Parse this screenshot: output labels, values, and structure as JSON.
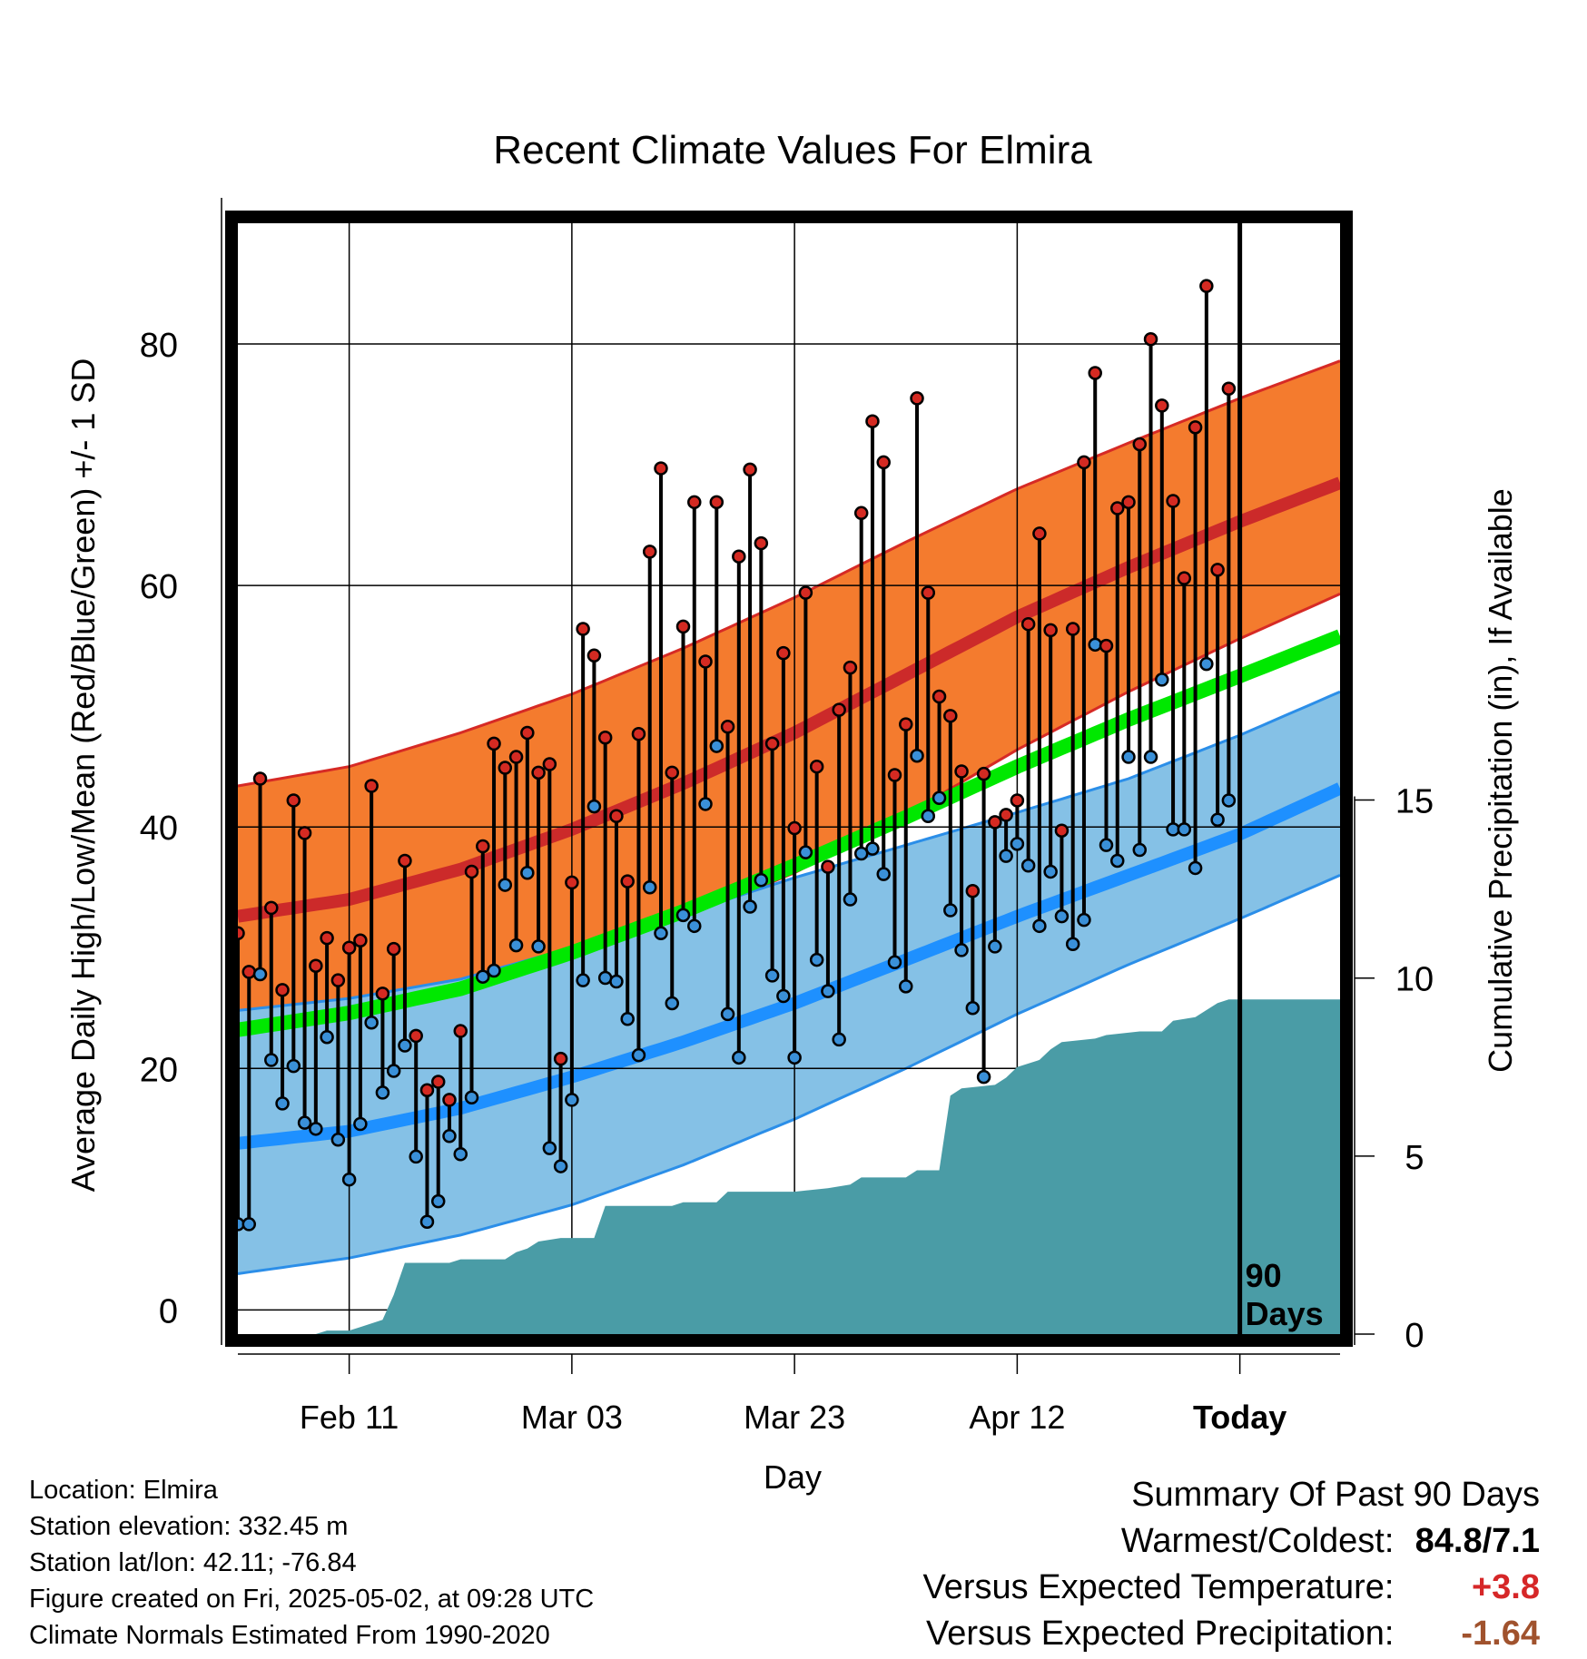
{
  "info": {
    "location": "Location: Elmira",
    "elevation": "Station elevation: 332.45 m",
    "latlon": "Station lat/lon: 42.11; -76.84",
    "created": "Figure created on Fri, 2025-05-02, at 09:28 UTC",
    "normals": "Climate Normals Estimated From 1990-2020"
  },
  "summary": {
    "heading": "Summary Of Past 90 Days",
    "warmest_label": "Warmest/Coldest:",
    "warmest_value": "84.8/7.1",
    "temp_label": "Versus Expected Temperature:",
    "temp_value": "+3.8",
    "precip_label": "Versus Expected Precipitation:",
    "precip_value": "-1.64",
    "temp_color": "#d62728",
    "precip_color": "#a0522d"
  },
  "chart_data": {
    "type": "line",
    "title": "Recent Climate Values For Elmira",
    "xlabel": "Day",
    "ylabel": "Average Daily High/Low/Mean (Red/Blue/Green) +/- 1 SD",
    "y2label": "Cumulative Precipitation (in), If Available",
    "x_range_days": [
      -90,
      9
    ],
    "ylim": [
      -2,
      90
    ],
    "y2lim": [
      0,
      31.2
    ],
    "y_ticks": [
      0,
      20,
      40,
      60,
      80
    ],
    "y2_ticks": [
      0,
      5,
      10,
      15
    ],
    "x_ticks": [
      {
        "day": -80,
        "label": "Feb 11"
      },
      {
        "day": -60,
        "label": "Mar 03"
      },
      {
        "day": -40,
        "label": "Mar 23"
      },
      {
        "day": -20,
        "label": "Apr 12"
      },
      {
        "day": 0,
        "label": "Today"
      }
    ],
    "today_marker": {
      "day": 0,
      "label_line1": "90",
      "label_line2": "Days"
    },
    "colors": {
      "high_band": "#f47b2e",
      "high_band_edge": "#d62a25",
      "high_mean": "#cc2a2a",
      "low_band": "#85c1e6",
      "low_band_edge": "#2b8ee8",
      "low_mean": "#1e90ff",
      "mean_normal": "#00e800",
      "precip": "#4a9ca6",
      "high_dot": "#d42a22",
      "low_dot": "#3a90d8"
    },
    "normals": {
      "days": [
        -90,
        -80,
        -70,
        -60,
        -50,
        -40,
        -30,
        -20,
        -10,
        0,
        9
      ],
      "high_mean": [
        32.6,
        34.0,
        36.5,
        39.8,
        43.6,
        47.8,
        52.6,
        57.4,
        61.5,
        65.3,
        68.5
      ],
      "high_upper": [
        43.4,
        45.0,
        47.8,
        51.0,
        54.8,
        59.0,
        63.6,
        68.0,
        71.8,
        75.5,
        78.6
      ],
      "high_lower": [
        22.2,
        23.5,
        25.8,
        29.0,
        32.4,
        36.2,
        41.0,
        46.4,
        51.2,
        55.6,
        59.3
      ],
      "low_mean": [
        13.8,
        14.8,
        16.7,
        19.3,
        22.2,
        25.4,
        29.0,
        32.6,
        36.0,
        39.4,
        43.2
      ],
      "low_upper": [
        24.8,
        25.8,
        27.4,
        30.0,
        32.8,
        35.8,
        38.5,
        41.2,
        44.0,
        47.6,
        51.2
      ],
      "low_lower": [
        3.0,
        4.3,
        6.2,
        8.7,
        12.0,
        15.8,
        20.0,
        24.5,
        28.6,
        32.4,
        36.0
      ],
      "mean_normal": [
        23.2,
        24.6,
        26.6,
        29.6,
        33.0,
        36.8,
        40.8,
        45.0,
        48.9,
        52.5,
        55.8
      ]
    },
    "daily": {
      "start_day": -90,
      "highs": [
        31.2,
        28.0,
        44.0,
        33.3,
        26.5,
        42.2,
        39.5,
        28.5,
        30.8,
        27.3,
        30.0,
        30.6,
        43.4,
        26.2,
        29.9,
        37.2,
        22.7,
        18.2,
        18.9,
        17.4,
        23.1,
        36.3,
        38.4,
        46.9,
        44.9,
        45.8,
        47.8,
        44.5,
        45.2,
        20.8,
        35.4,
        56.4,
        54.2,
        47.4,
        40.9,
        35.5,
        47.7,
        62.8,
        69.7,
        44.5,
        56.6,
        66.9,
        53.7,
        66.9,
        48.3,
        62.4,
        69.6,
        63.5,
        46.9,
        54.4,
        39.9,
        59.4,
        45.0,
        36.7,
        49.7,
        53.2,
        66.0,
        73.6,
        70.2,
        44.3,
        48.5,
        75.5,
        59.4,
        50.8,
        49.2,
        44.6,
        34.7,
        44.4,
        40.4,
        41.0,
        42.2,
        56.8,
        64.3,
        56.3,
        39.7,
        56.4,
        70.2,
        77.6,
        55.0,
        66.4,
        66.9,
        71.7,
        80.4,
        74.9,
        67.0,
        60.6,
        73.1,
        84.8,
        61.3,
        76.3
      ],
      "lows": [
        7.1,
        7.1,
        27.8,
        20.7,
        17.1,
        20.2,
        15.5,
        15.0,
        22.6,
        14.1,
        10.8,
        15.4,
        23.8,
        18.0,
        19.8,
        21.9,
        12.7,
        7.3,
        9.0,
        14.4,
        12.9,
        17.6,
        27.6,
        28.1,
        35.2,
        30.2,
        36.2,
        30.1,
        13.4,
        11.9,
        17.4,
        27.3,
        41.7,
        27.5,
        27.2,
        24.1,
        21.1,
        35.0,
        31.2,
        25.4,
        32.7,
        31.8,
        41.9,
        46.7,
        24.5,
        20.9,
        33.4,
        35.6,
        27.7,
        26.0,
        20.9,
        37.9,
        29.0,
        26.4,
        22.4,
        34.0,
        37.8,
        38.2,
        36.1,
        28.8,
        26.8,
        45.9,
        40.9,
        42.4,
        33.1,
        29.8,
        25.0,
        19.3,
        30.1,
        37.6,
        38.6,
        36.8,
        31.8,
        36.3,
        32.6,
        30.3,
        32.3,
        55.1,
        38.5,
        37.2,
        45.8,
        38.1,
        45.8,
        52.2,
        39.8,
        39.8,
        36.6,
        53.5,
        40.6,
        42.2
      ]
    },
    "precip_cumulative": [
      [
        -90,
        0
      ],
      [
        -83,
        0
      ],
      [
        -82,
        0.1
      ],
      [
        -80,
        0.1
      ],
      [
        -79,
        0.2
      ],
      [
        -77,
        0.4
      ],
      [
        -76,
        1.1
      ],
      [
        -75,
        2.0
      ],
      [
        -71,
        2.0
      ],
      [
        -70,
        2.1
      ],
      [
        -66,
        2.1
      ],
      [
        -65,
        2.3
      ],
      [
        -64,
        2.4
      ],
      [
        -63,
        2.6
      ],
      [
        -61,
        2.7
      ],
      [
        -58,
        2.7
      ],
      [
        -57,
        3.6
      ],
      [
        -51,
        3.6
      ],
      [
        -50,
        3.7
      ],
      [
        -47,
        3.7
      ],
      [
        -46,
        4.0
      ],
      [
        -40,
        4.0
      ],
      [
        -37,
        4.1
      ],
      [
        -35,
        4.2
      ],
      [
        -34,
        4.4
      ],
      [
        -30,
        4.4
      ],
      [
        -29,
        4.6
      ],
      [
        -27,
        4.6
      ],
      [
        -26,
        6.7
      ],
      [
        -25,
        6.9
      ],
      [
        -22,
        7.0
      ],
      [
        -21,
        7.2
      ],
      [
        -20,
        7.5
      ],
      [
        -18,
        7.7
      ],
      [
        -17,
        8.0
      ],
      [
        -16,
        8.2
      ],
      [
        -13,
        8.3
      ],
      [
        -12,
        8.4
      ],
      [
        -9,
        8.5
      ],
      [
        -7,
        8.5
      ],
      [
        -6,
        8.8
      ],
      [
        -4,
        8.9
      ],
      [
        -3,
        9.1
      ],
      [
        -2,
        9.3
      ],
      [
        -1,
        9.4
      ],
      [
        9,
        9.4
      ]
    ]
  }
}
